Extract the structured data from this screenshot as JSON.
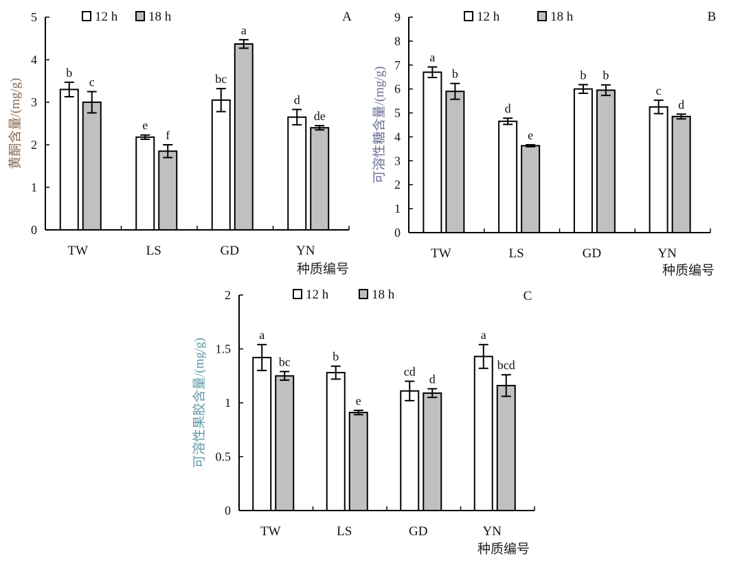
{
  "chart_data": [
    {
      "type": "bar",
      "panel_label": "A",
      "ylabel": "黄酮含量/(mg/g)",
      "ylabel_color": "#8a6a50",
      "xlabel": "种质编号",
      "categories": [
        "TW",
        "LS",
        "GD",
        "YN"
      ],
      "ylim": [
        0,
        5
      ],
      "yticks": [
        0,
        1,
        2,
        3,
        4,
        5
      ],
      "legend_position": "top",
      "series": [
        {
          "name": "12 h",
          "color": "#ffffff",
          "values": [
            3.3,
            2.18,
            3.05,
            2.65
          ],
          "errors": [
            0.17,
            0.05,
            0.27,
            0.18
          ],
          "letters": [
            "b",
            "e",
            "bc",
            "d"
          ]
        },
        {
          "name": "18 h",
          "color": "#c0c0c0",
          "values": [
            3.0,
            1.85,
            4.37,
            2.4
          ],
          "errors": [
            0.25,
            0.15,
            0.1,
            0.05
          ],
          "letters": [
            "c",
            "f",
            "a",
            "de"
          ]
        }
      ]
    },
    {
      "type": "bar",
      "panel_label": "B",
      "ylabel": "可溶性糖含量/(mg/g)",
      "ylabel_color": "#6a6f96",
      "xlabel": "种质编号",
      "categories": [
        "TW",
        "LS",
        "GD",
        "YN"
      ],
      "ylim": [
        0,
        9
      ],
      "yticks": [
        0,
        1,
        2,
        3,
        4,
        5,
        6,
        7,
        8,
        9
      ],
      "legend_position": "top",
      "series": [
        {
          "name": "12 h",
          "color": "#ffffff",
          "values": [
            6.7,
            4.65,
            6.0,
            5.25
          ],
          "errors": [
            0.22,
            0.13,
            0.18,
            0.28
          ],
          "letters": [
            "a",
            "d",
            "b",
            "c"
          ]
        },
        {
          "name": "18 h",
          "color": "#c0c0c0",
          "values": [
            5.9,
            3.63,
            5.95,
            4.85
          ],
          "errors": [
            0.33,
            0.04,
            0.22,
            0.1
          ],
          "letters": [
            "b",
            "e",
            "b",
            "d"
          ]
        }
      ]
    },
    {
      "type": "bar",
      "panel_label": "C",
      "ylabel": "可溶性果胶含量/(mg/g)",
      "ylabel_color": "#5f9aa6",
      "xlabel": "种质编号",
      "categories": [
        "TW",
        "LS",
        "GD",
        "YN"
      ],
      "ylim": [
        0,
        2
      ],
      "yticks": [
        0,
        0.5,
        1,
        1.5,
        2
      ],
      "legend_position": "top",
      "series": [
        {
          "name": "12 h",
          "color": "#ffffff",
          "values": [
            1.42,
            1.28,
            1.11,
            1.43
          ],
          "errors": [
            0.12,
            0.06,
            0.09,
            0.11
          ],
          "letters": [
            "a",
            "b",
            "cd",
            "a"
          ]
        },
        {
          "name": "18 h",
          "color": "#c0c0c0",
          "values": [
            1.25,
            0.91,
            1.09,
            1.16
          ],
          "errors": [
            0.04,
            0.02,
            0.04,
            0.1
          ],
          "letters": [
            "bc",
            "e",
            "d",
            "bcd"
          ]
        }
      ]
    }
  ]
}
